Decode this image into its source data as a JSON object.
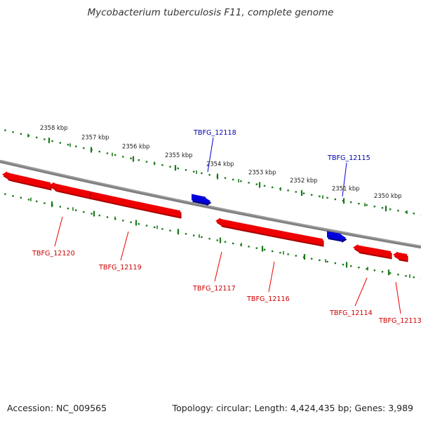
{
  "title": "Mycobacterium tuberculosis F11, complete genome",
  "footer": {
    "accession": "Accession: NC_009565",
    "summary": "Topology: circular; Length: 4,424,435 bp; Genes: 3,989"
  },
  "colors": {
    "forward_gene": "#0000dd",
    "reverse_gene": "#ee0000",
    "backbone": "#808080",
    "tick_marks": "#1a7a1a",
    "tick_label": "#222222"
  },
  "scale_ticks": [
    {
      "label": "2358 kbp"
    },
    {
      "label": "2357 kbp"
    },
    {
      "label": "2356 kbp"
    },
    {
      "label": "2355 kbp"
    },
    {
      "label": "2354 kbp"
    },
    {
      "label": "2353 kbp"
    },
    {
      "label": "2352 kbp"
    },
    {
      "label": "2351 kbp"
    },
    {
      "label": "2350 kbp"
    }
  ],
  "genes": [
    {
      "name": "TBFG_12118",
      "strand": "forward"
    },
    {
      "name": "TBFG_12115",
      "strand": "forward"
    },
    {
      "name": "TBFG_12120",
      "strand": "reverse"
    },
    {
      "name": "TBFG_12119",
      "strand": "reverse"
    },
    {
      "name": "TBFG_12117",
      "strand": "reverse"
    },
    {
      "name": "TBFG_12116",
      "strand": "reverse"
    },
    {
      "name": "TBFG_12114",
      "strand": "reverse"
    },
    {
      "name": "TBFG_12113",
      "strand": "reverse"
    }
  ]
}
